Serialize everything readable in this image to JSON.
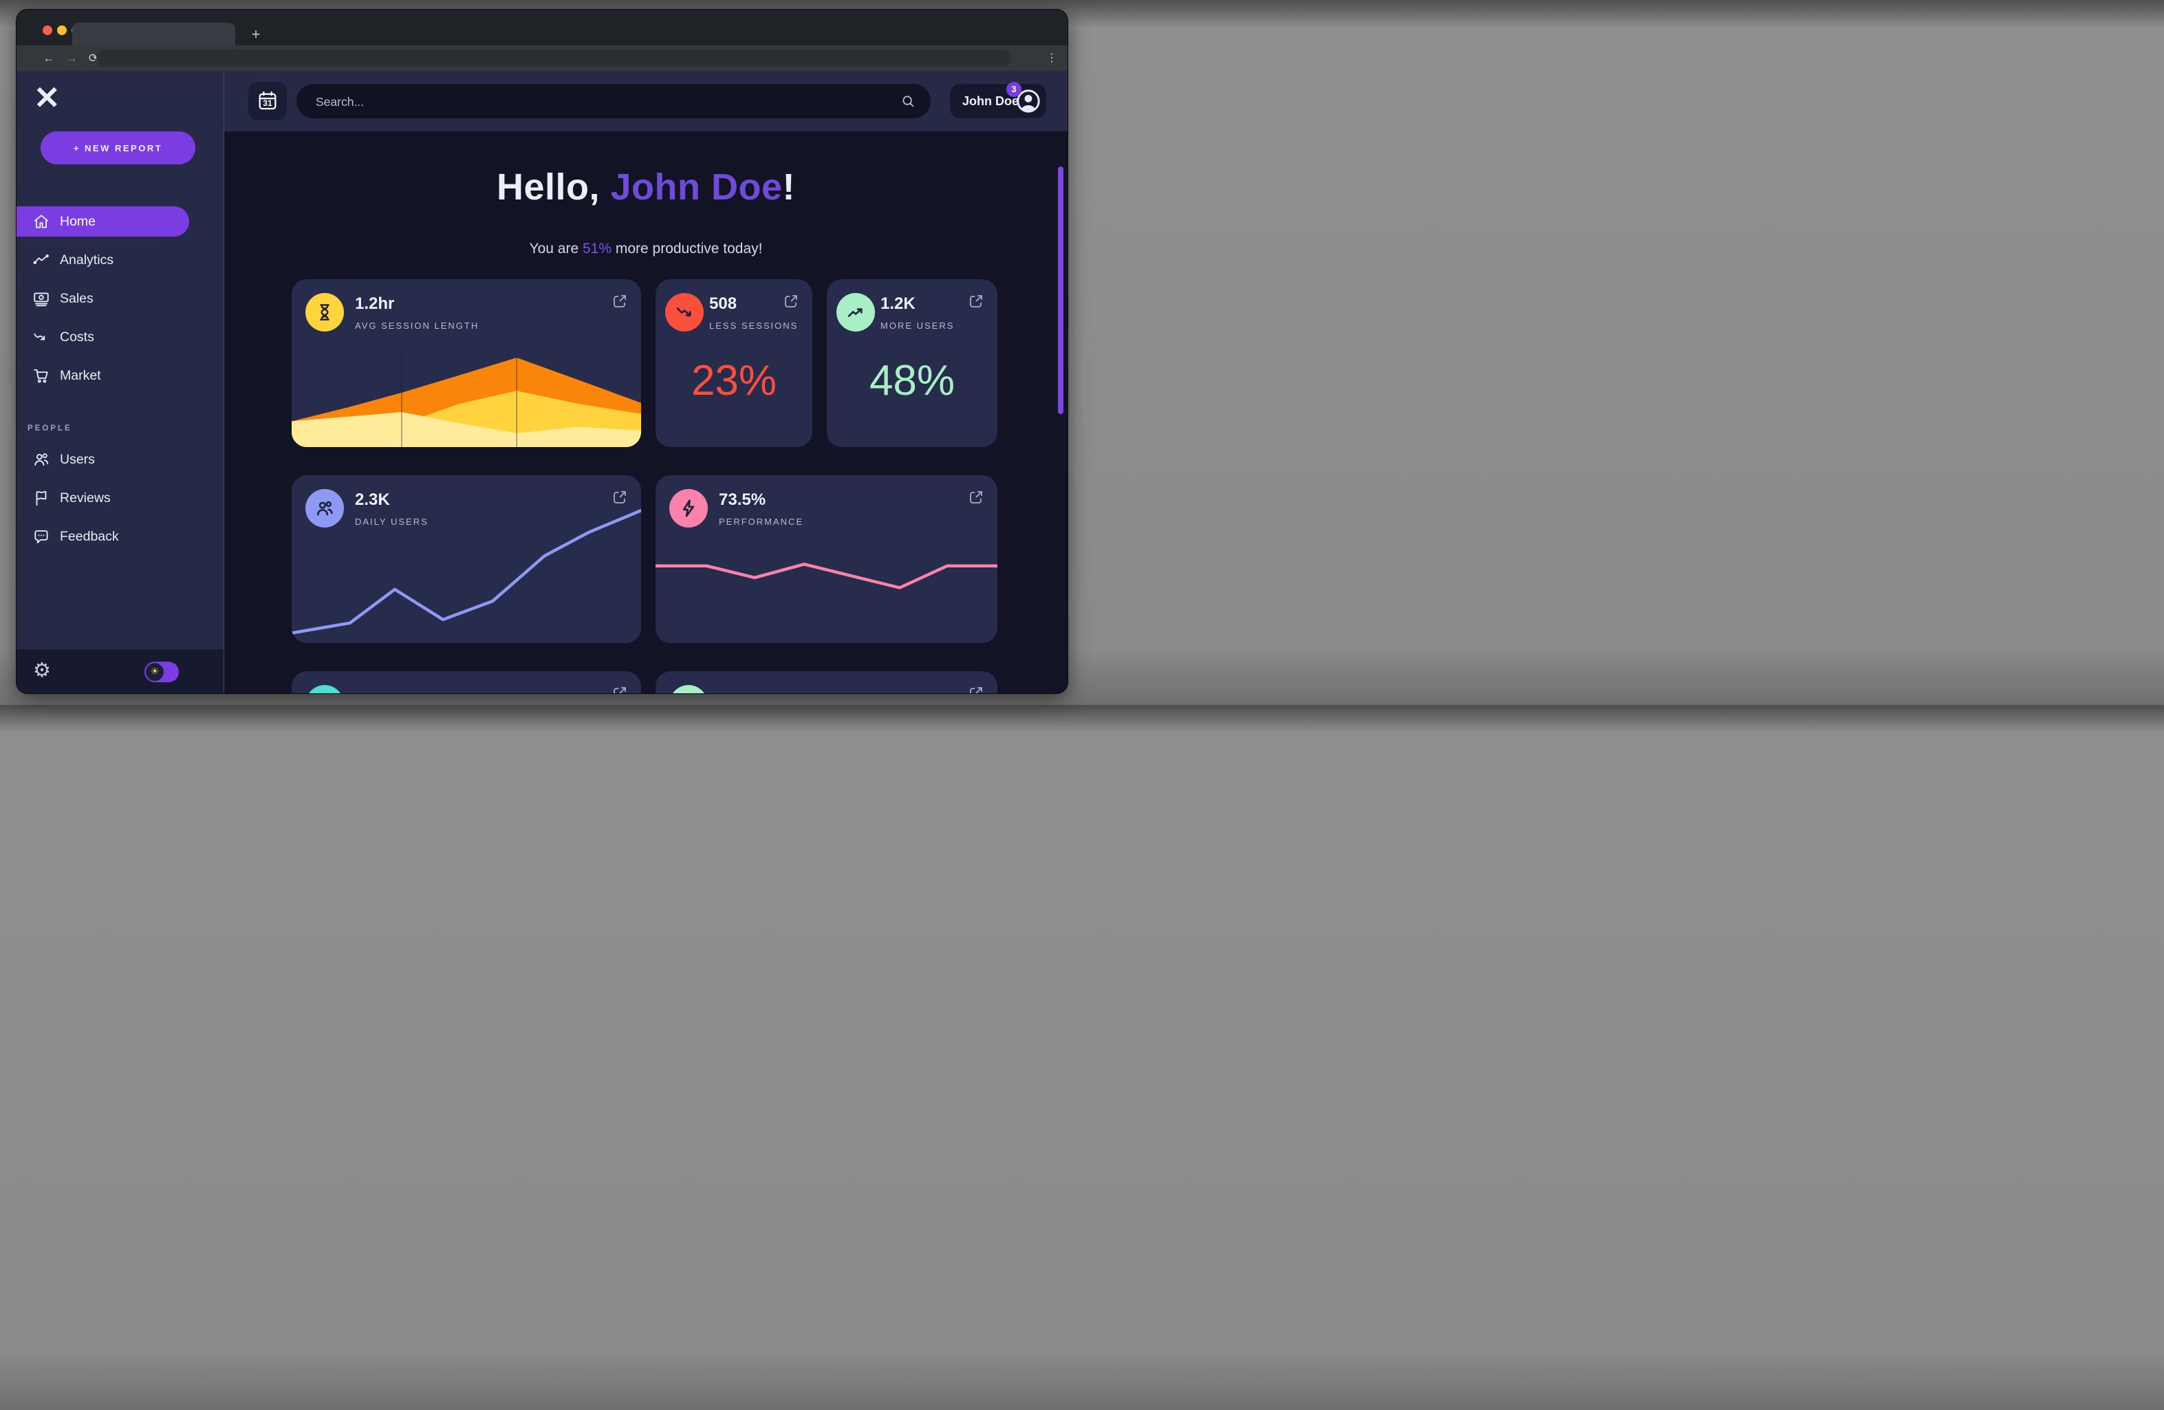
{
  "browser": {
    "new_tab_label": "+",
    "icons": {
      "back": "←",
      "forward": "→",
      "reload": "⟳",
      "kebab": "⋮"
    }
  },
  "colors": {
    "accent_purple": "#7b3de2",
    "heading_purple": "#6f4bd8",
    "scrollbar_purple": "#7a49e0",
    "red": "#f8503c",
    "mint": "#a9efc5",
    "yellow": "#ffd43d",
    "periwinkle": "#8e99f3",
    "pink": "#fa82ab",
    "teal": "#4fded0",
    "card_bg": "#272b4c",
    "sidebar_bg": "#262a46",
    "page_bg": "#121426"
  },
  "sidebar": {
    "logo_glyph": "✕",
    "new_report_label": "+ NEW REPORT",
    "nav": [
      {
        "label": "Home",
        "active": true
      },
      {
        "label": "Analytics",
        "active": false
      },
      {
        "label": "Sales",
        "active": false
      },
      {
        "label": "Costs",
        "active": false
      },
      {
        "label": "Market",
        "active": false
      }
    ],
    "section_label": "PEOPLE",
    "people_nav": [
      {
        "label": "Users"
      },
      {
        "label": "Reviews"
      },
      {
        "label": "Feedback"
      }
    ],
    "footer": {
      "gear_glyph": "⚙",
      "sun_glyph": "☀"
    }
  },
  "header": {
    "calendar_day": "31",
    "search_placeholder": "Search...",
    "user_name": "John Doe",
    "notification_count": "3"
  },
  "main": {
    "greeting": {
      "pre": "Hello, ",
      "name": "John Doe",
      "post": "!"
    },
    "subtitle": {
      "pre": "You are ",
      "highlight": "51%",
      "post": " more productive today!"
    },
    "cards": [
      {
        "value": "1.2hr",
        "label": "AVG SESSION LENGTH",
        "chart": {
          "type": "area-stacked",
          "x": [
            0,
            16,
            31.5,
            48,
            64.4,
            82,
            100
          ],
          "gridlines_x": [
            31.5,
            64.4
          ],
          "gridline_color": "#14162b",
          "series": [
            {
              "name": "sessions-long",
              "color": "#f9860b",
              "values": [
                28,
                43,
                59,
                78,
                97,
                73,
                48
              ]
            },
            {
              "name": "sessions-mid",
              "color": "#ffd23e",
              "values": [
                25,
                25,
                25,
                47,
                61,
                47,
                36
              ]
            },
            {
              "name": "sessions-short",
              "color": "#ffec9a",
              "values": [
                28,
                33,
                38,
                26,
                15,
                22,
                18
              ]
            }
          ]
        }
      },
      {
        "value": "508",
        "label": "LESS SESSIONS",
        "big_value": "23%"
      },
      {
        "value": "1.2K",
        "label": "MORE USERS",
        "big_value": "48%"
      },
      {
        "value": "2.3K",
        "label": "DAILY USERS",
        "chart": {
          "type": "line",
          "x": [
            0,
            16.7,
            29.5,
            43.3,
            57.5,
            72.4,
            85,
            100
          ],
          "stroke_width": 4.5,
          "series": [
            {
              "name": "daily-users",
              "color": "#8e99f3",
              "values": [
                6,
                12,
                32,
                14,
                25,
                52,
                66,
                79
              ]
            }
          ]
        }
      },
      {
        "value": "73.5%",
        "label": "PERFORMANCE",
        "chart": {
          "type": "line",
          "x": [
            0,
            15,
            29,
            43.5,
            71.4,
            85.3,
            100
          ],
          "stroke_width": 4.5,
          "series": [
            {
              "name": "performance",
              "color": "#fa82ab",
              "values": [
                46,
                46,
                39,
                47,
                33,
                46,
                46
              ]
            }
          ]
        }
      }
    ]
  },
  "chart_data": [
    {
      "type": "area",
      "title": "AVG SESSION LENGTH (1.2hr) — stacked area, no axes shown",
      "x_percent": [
        0,
        16,
        31.5,
        48,
        64.4,
        82,
        100
      ],
      "series": [
        {
          "name": "top-orange band (stack top %)",
          "values": [
            28,
            43,
            59,
            78,
            97,
            73,
            48
          ]
        },
        {
          "name": "middle-yellow band (top %)",
          "values": [
            25,
            25,
            25,
            47,
            61,
            47,
            36
          ]
        },
        {
          "name": "pale-yellow band (top %)",
          "values": [
            28,
            33,
            38,
            26,
            15,
            22,
            18
          ]
        }
      ],
      "legend": "none",
      "grid": "two faint vertical lines at 1/3 and 2/3"
    },
    {
      "type": "line",
      "title": "DAILY USERS (2.3K) — no axes shown",
      "x_percent": [
        0,
        16.7,
        29.5,
        43.3,
        57.5,
        72.4,
        85,
        100
      ],
      "values_percent_of_height": [
        6,
        12,
        32,
        14,
        25,
        52,
        66,
        79
      ]
    },
    {
      "type": "line",
      "title": "PERFORMANCE (73.5%) — no axes shown",
      "x_percent": [
        0,
        15,
        29,
        43.5,
        71.4,
        85.3,
        100
      ],
      "values_percent_of_height": [
        46,
        46,
        39,
        47,
        33,
        46,
        46
      ]
    }
  ]
}
